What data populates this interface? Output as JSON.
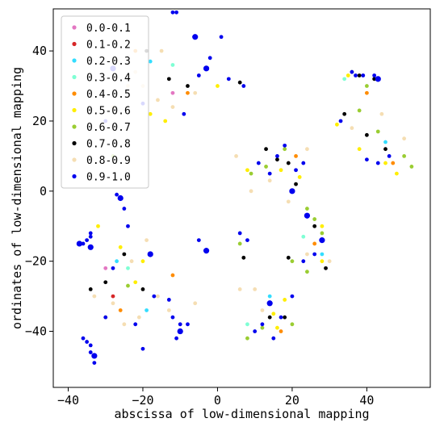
{
  "chart_data": {
    "type": "scatter",
    "xlabel": "abscissa of low-dimensional mapping",
    "ylabel": "ordinates of low-dimensional mapping",
    "xlim": [
      -44,
      57
    ],
    "ylim": [
      -56,
      52
    ],
    "xticks": [
      -40,
      -20,
      0,
      20,
      40
    ],
    "yticks": [
      -40,
      -20,
      0,
      20,
      40
    ],
    "legend_position": "top-left",
    "series": [
      {
        "name": "0.0-0.1",
        "color": "#e377c2",
        "points": [
          [
            -30,
            -22
          ],
          [
            -12,
            28
          ]
        ]
      },
      {
        "name": "0.1-0.2",
        "color": "#d62728",
        "points": [
          [
            -28,
            -30
          ]
        ]
      },
      {
        "name": "0.2-0.3",
        "color": "#33ddff",
        "points": [
          [
            -27,
            -20
          ],
          [
            -19,
            -34
          ],
          [
            14,
            -30
          ],
          [
            28,
            -18
          ],
          [
            45,
            14
          ],
          [
            -18,
            37
          ]
        ]
      },
      {
        "name": "0.3-0.4",
        "color": "#7fffd4",
        "points": [
          [
            -24,
            -22
          ],
          [
            -12,
            36
          ],
          [
            23,
            -13
          ],
          [
            34,
            32
          ],
          [
            8,
            -38
          ]
        ]
      },
      {
        "name": "0.4-0.5",
        "color": "#ff8c00",
        "points": [
          [
            -22,
            40
          ],
          [
            -8,
            28
          ],
          [
            21,
            10
          ],
          [
            26,
            -15
          ],
          [
            40,
            28
          ],
          [
            47,
            8
          ],
          [
            17,
            -40
          ],
          [
            -26,
            -34
          ],
          [
            -12,
            -24
          ]
        ]
      },
      {
        "name": "0.5-0.6",
        "color": "#ffee00",
        "points": [
          [
            -26,
            -16
          ],
          [
            -30,
            -36
          ],
          [
            -22,
            -26
          ],
          [
            -14,
            20
          ],
          [
            -18,
            22
          ],
          [
            0,
            30
          ],
          [
            8,
            6
          ],
          [
            17,
            6
          ],
          [
            22,
            4
          ],
          [
            28,
            -10
          ],
          [
            28,
            -20
          ],
          [
            32,
            19
          ],
          [
            38,
            12
          ],
          [
            45,
            8
          ],
          [
            48,
            5
          ],
          [
            35,
            33
          ],
          [
            15,
            -35
          ],
          [
            18,
            -31
          ],
          [
            16,
            -39
          ],
          [
            -20,
            -20
          ],
          [
            -32,
            -10
          ]
        ]
      },
      {
        "name": "0.6-0.7",
        "color": "#9acd32",
        "points": [
          [
            -24,
            -27
          ],
          [
            9,
            5
          ],
          [
            13,
            7
          ],
          [
            18,
            12
          ],
          [
            24,
            -5
          ],
          [
            26,
            -8
          ],
          [
            28,
            -12
          ],
          [
            36,
            34
          ],
          [
            40,
            30
          ],
          [
            43,
            17
          ],
          [
            50,
            10
          ],
          [
            52,
            7
          ],
          [
            20,
            -20
          ],
          [
            24,
            -23
          ],
          [
            8,
            -42
          ],
          [
            12,
            -39
          ],
          [
            20,
            -38
          ],
          [
            6,
            -15
          ],
          [
            -28,
            10
          ],
          [
            38,
            23
          ]
        ]
      },
      {
        "name": "0.7-0.8",
        "color": "#000000",
        "points": [
          [
            -20,
            -28
          ],
          [
            -25,
            -18
          ],
          [
            -30,
            -26
          ],
          [
            -8,
            30
          ],
          [
            -13,
            32
          ],
          [
            -19,
            40
          ],
          [
            6,
            31
          ],
          [
            13,
            12
          ],
          [
            16,
            9
          ],
          [
            19,
            8
          ],
          [
            21,
            2
          ],
          [
            34,
            22
          ],
          [
            38,
            33
          ],
          [
            42,
            32
          ],
          [
            45,
            12
          ],
          [
            40,
            16
          ],
          [
            26,
            -10
          ],
          [
            29,
            -22
          ],
          [
            19,
            -19
          ],
          [
            7,
            -19
          ],
          [
            14,
            -36
          ],
          [
            18,
            -36
          ],
          [
            -34,
            -28
          ]
        ]
      },
      {
        "name": "0.8-0.9",
        "color": "#f5deb3",
        "points": [
          [
            -33,
            -30
          ],
          [
            -28,
            -32
          ],
          [
            -25,
            -38
          ],
          [
            -21,
            -36
          ],
          [
            -16,
            -30
          ],
          [
            -13,
            -34
          ],
          [
            -23,
            -20
          ],
          [
            -19,
            -14
          ],
          [
            -28,
            24
          ],
          [
            -24,
            30
          ],
          [
            -20,
            30
          ],
          [
            -16,
            26
          ],
          [
            -12,
            24
          ],
          [
            -6,
            28
          ],
          [
            -22,
            34
          ],
          [
            -15,
            40
          ],
          [
            5,
            10
          ],
          [
            9,
            0
          ],
          [
            14,
            3
          ],
          [
            24,
            12
          ],
          [
            19,
            -3
          ],
          [
            30,
            -20
          ],
          [
            24,
            -18
          ],
          [
            44,
            22
          ],
          [
            50,
            15
          ],
          [
            36,
            18
          ],
          [
            12,
            -34
          ],
          [
            10,
            -28
          ],
          [
            6,
            -28
          ],
          [
            -10,
            -38
          ],
          [
            -6,
            -32
          ]
        ]
      },
      {
        "name": "0.9-1.0",
        "color": "#0000ee",
        "points": [
          [
            -37,
            -15
          ],
          [
            -36,
            -15
          ],
          [
            -35,
            -14
          ],
          [
            -34,
            -13
          ],
          [
            -34,
            -12
          ],
          [
            -34,
            -16
          ],
          [
            -36,
            -42
          ],
          [
            -35,
            -43
          ],
          [
            -34,
            -44
          ],
          [
            -34,
            -46
          ],
          [
            -33,
            -47
          ],
          [
            -33,
            -49
          ],
          [
            -30,
            -36
          ],
          [
            -28,
            -22
          ],
          [
            -27,
            -1
          ],
          [
            -26,
            -2
          ],
          [
            -25,
            -5
          ],
          [
            -24,
            -10
          ],
          [
            -22,
            -38
          ],
          [
            -20,
            -45
          ],
          [
            -18,
            -18
          ],
          [
            -17,
            -30
          ],
          [
            -13,
            -31
          ],
          [
            -12,
            -36
          ],
          [
            -10,
            -38
          ],
          [
            -10,
            -40
          ],
          [
            -11,
            -42
          ],
          [
            -8,
            -38
          ],
          [
            -12,
            51
          ],
          [
            -11,
            51
          ],
          [
            -6,
            44
          ],
          [
            -2,
            38
          ],
          [
            1,
            44
          ],
          [
            3,
            32
          ],
          [
            7,
            30
          ],
          [
            -3,
            35
          ],
          [
            -5,
            33
          ],
          [
            -9,
            22
          ],
          [
            -20,
            25
          ],
          [
            -30,
            20
          ],
          [
            -28,
            35
          ],
          [
            11,
            8
          ],
          [
            14,
            5
          ],
          [
            16,
            10
          ],
          [
            18,
            13
          ],
          [
            20,
            0
          ],
          [
            21,
            6
          ],
          [
            23,
            8
          ],
          [
            6,
            -12
          ],
          [
            8,
            -14
          ],
          [
            -3,
            -17
          ],
          [
            -5,
            -14
          ],
          [
            10,
            -40
          ],
          [
            12,
            -38
          ],
          [
            15,
            -42
          ],
          [
            14,
            -32
          ],
          [
            17,
            -36
          ],
          [
            20,
            -30
          ],
          [
            23,
            -20
          ],
          [
            26,
            -18
          ],
          [
            28,
            -14
          ],
          [
            36,
            34
          ],
          [
            37,
            33
          ],
          [
            39,
            33
          ],
          [
            42,
            33
          ],
          [
            43,
            32
          ],
          [
            46,
            10
          ],
          [
            40,
            9
          ],
          [
            43,
            8
          ],
          [
            33,
            20
          ],
          [
            24,
            -7
          ]
        ]
      }
    ]
  }
}
